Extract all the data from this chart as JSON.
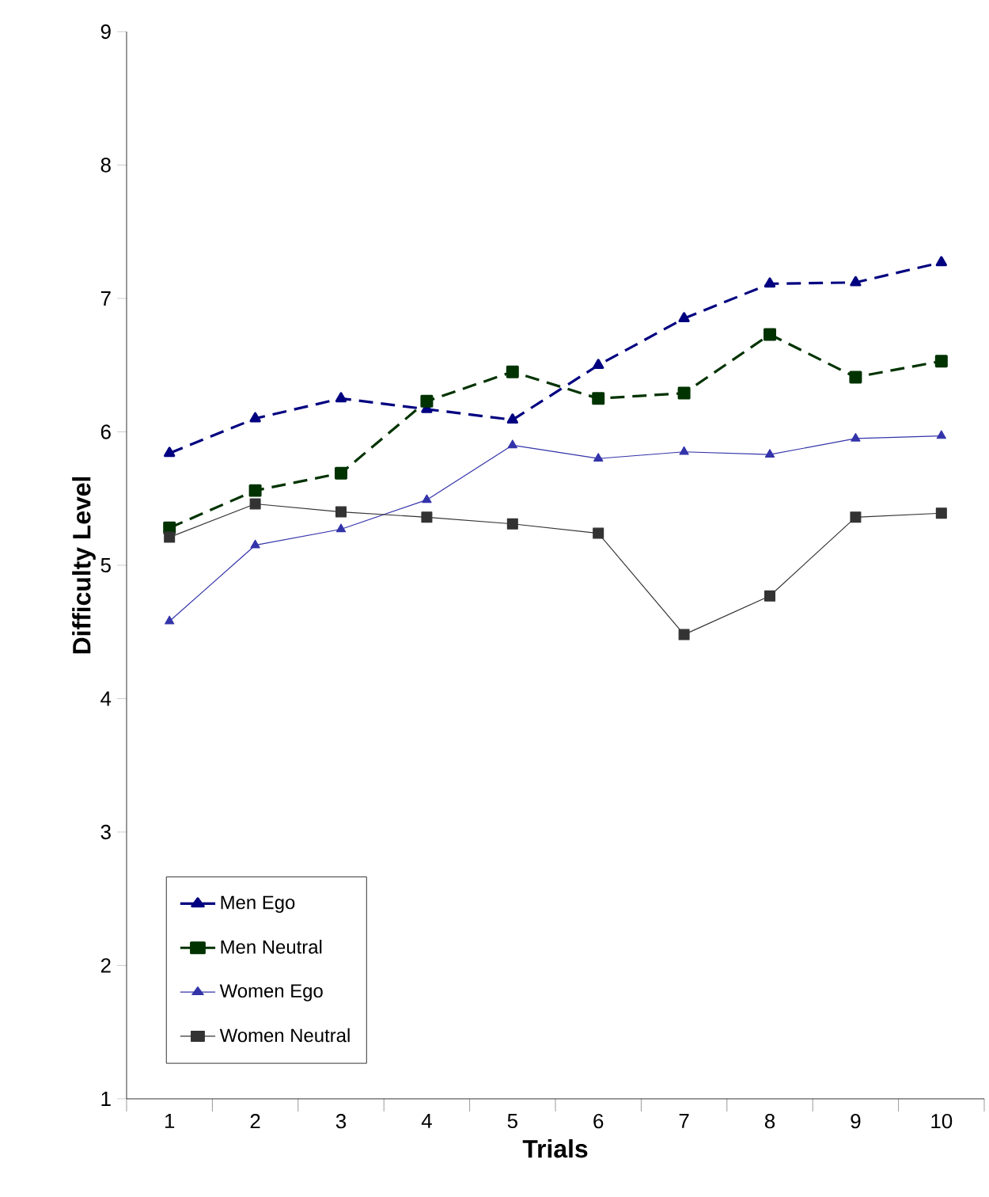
{
  "chart_data": {
    "type": "line",
    "xlabel": "Trials",
    "ylabel": "Difficulty Level",
    "categories": [
      "1",
      "2",
      "3",
      "4",
      "5",
      "6",
      "7",
      "8",
      "9",
      "10"
    ],
    "ylim": [
      1,
      9
    ],
    "yticks": [
      1,
      2,
      3,
      4,
      5,
      6,
      7,
      8,
      9
    ],
    "grid": false,
    "legend": "bottom left",
    "series": [
      {
        "name": "Men   Ego",
        "color": "#000080",
        "marker": "triangle",
        "line_style": "dashed",
        "values": [
          5.84,
          6.1,
          6.25,
          6.17,
          6.09,
          6.5,
          6.85,
          7.11,
          7.12,
          7.27
        ]
      },
      {
        "name": "Men  Neutral",
        "color": "#003300",
        "marker": "square",
        "line_style": "dashed",
        "values": [
          5.28,
          5.56,
          5.69,
          6.23,
          6.45,
          6.25,
          6.29,
          6.73,
          6.41,
          6.53
        ]
      },
      {
        "name": "Women   Ego",
        "color": "#3333aa",
        "marker": "triangle",
        "line_style": "solid",
        "values": [
          4.58,
          5.15,
          5.27,
          5.49,
          5.9,
          5.8,
          5.85,
          5.83,
          5.95,
          5.97
        ]
      },
      {
        "name": "Women Neutral",
        "color": "#333333",
        "marker": "square",
        "line_style": "solid",
        "values": [
          5.21,
          5.46,
          5.4,
          5.36,
          5.31,
          5.24,
          4.48,
          4.77,
          5.36,
          5.39
        ]
      }
    ]
  }
}
